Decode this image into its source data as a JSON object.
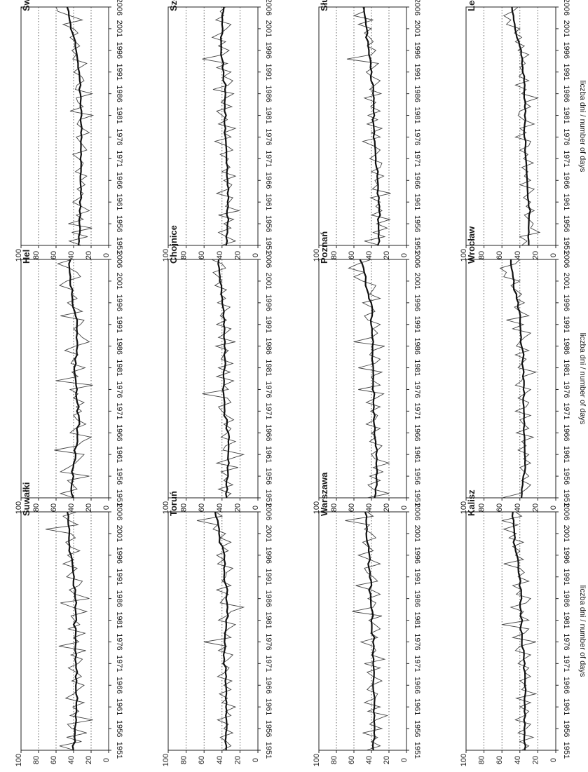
{
  "figure": {
    "ylabel": "liczba dni / number of days"
  },
  "chart_data": {
    "type": "line",
    "x_ticks": [
      1951,
      1956,
      1961,
      1966,
      1971,
      1976,
      1981,
      1986,
      1991,
      1996,
      2001,
      2006
    ],
    "y_ticks": [
      0,
      20,
      40,
      60,
      80,
      100
    ],
    "xlim": [
      1951,
      2006
    ],
    "ylim": [
      0,
      100
    ],
    "grid": "dotted lines at 20, 40, 60, 80",
    "series_style": {
      "annual": "#444444",
      "smoothed": "#111111"
    },
    "panels": [
      {
        "station": "Świnoujście",
        "values": [
          31,
          45,
          24,
          42,
          19,
          46,
          29,
          37,
          22,
          31,
          41,
          33,
          29,
          36,
          27,
          32,
          25,
          38,
          31,
          29,
          34,
          41,
          25,
          29,
          33,
          37,
          22,
          30,
          36,
          33,
          18,
          44,
          29,
          35,
          37,
          19,
          38,
          36,
          28,
          31,
          40,
          33,
          25,
          41,
          37,
          42,
          33,
          38,
          44,
          35,
          40,
          52,
          30,
          44,
          58,
          60
        ]
      },
      {
        "station": "Hel",
        "values": [
          40,
          55,
          36,
          41,
          47,
          22,
          55,
          46,
          38,
          33,
          28,
          62,
          36,
          30,
          20,
          44,
          38,
          26,
          36,
          40,
          31,
          37,
          28,
          40,
          35,
          44,
          18,
          60,
          35,
          42,
          27,
          43,
          40,
          35,
          50,
          38,
          22,
          30,
          35,
          40,
          32,
          28,
          55,
          30,
          40,
          47,
          36,
          42,
          41,
          56,
          48,
          32,
          36,
          45,
          58,
          42
        ]
      },
      {
        "station": "Suwałki",
        "values": [
          39,
          56,
          31,
          48,
          25,
          42,
          47,
          18,
          44,
          34,
          41,
          28,
          49,
          40,
          35,
          28,
          42,
          31,
          37,
          46,
          35,
          30,
          43,
          26,
          57,
          34,
          40,
          27,
          46,
          33,
          39,
          43,
          25,
          41,
          55,
          22,
          38,
          45,
          34,
          30,
          48,
          42,
          36,
          52,
          40,
          47,
          33,
          44,
          49,
          38,
          43,
          72,
          35,
          45,
          52,
          36
        ]
      },
      {
        "station": "Szczecin",
        "values": [
          41,
          25,
          35,
          44,
          30,
          38,
          27,
          44,
          21,
          36,
          32,
          28,
          46,
          33,
          29,
          38,
          25,
          40,
          31,
          36,
          33,
          42,
          28,
          35,
          48,
          30,
          38,
          25,
          44,
          34,
          40,
          46,
          29,
          41,
          36,
          27,
          50,
          33,
          28,
          38,
          30,
          46,
          34,
          62,
          39,
          32,
          44,
          36,
          51,
          41,
          35,
          30,
          47,
          38,
          42,
          36
        ]
      },
      {
        "station": "Chojnice",
        "values": [
          36,
          30,
          44,
          28,
          38,
          33,
          41,
          22,
          46,
          31,
          16,
          39,
          36,
          25,
          41,
          34,
          30,
          38,
          27,
          35,
          40,
          44,
          30,
          34,
          62,
          33,
          38,
          27,
          46,
          31,
          44,
          28,
          41,
          38,
          33,
          47,
          25,
          44,
          36,
          30,
          46,
          35,
          42,
          38,
          31,
          45,
          36,
          42,
          35,
          48,
          40,
          44,
          50,
          36,
          40,
          52
        ]
      },
      {
        "station": "Toruń",
        "values": [
          40,
          30,
          35,
          42,
          28,
          38,
          33,
          45,
          30,
          36,
          25,
          40,
          34,
          43,
          30,
          38,
          29,
          45,
          36,
          32,
          40,
          33,
          28,
          44,
          35,
          60,
          30,
          38,
          33,
          25,
          44,
          35,
          30,
          16,
          42,
          38,
          33,
          46,
          30,
          40,
          36,
          35,
          28,
          45,
          38,
          46,
          33,
          40,
          30,
          42,
          36,
          50,
          45,
          68,
          40,
          47
        ]
      },
      {
        "station": "Słubice",
        "values": [
          30,
          48,
          25,
          38,
          22,
          34,
          19,
          40,
          28,
          35,
          30,
          41,
          18,
          39,
          33,
          36,
          26,
          40,
          30,
          28,
          42,
          35,
          30,
          38,
          50,
          30,
          40,
          28,
          45,
          33,
          44,
          30,
          41,
          35,
          48,
          29,
          42,
          36,
          30,
          40,
          46,
          38,
          32,
          68,
          40,
          35,
          45,
          38,
          42,
          48,
          40,
          55,
          38,
          60,
          48,
          50
        ]
      },
      {
        "station": "Poznań",
        "values": [
          45,
          20,
          38,
          44,
          30,
          42,
          27,
          38,
          20,
          36,
          40,
          33,
          28,
          42,
          35,
          40,
          30,
          46,
          36,
          33,
          41,
          30,
          46,
          35,
          26,
          55,
          30,
          38,
          40,
          28,
          55,
          36,
          30,
          42,
          38,
          25,
          60,
          40,
          33,
          38,
          30,
          44,
          48,
          36,
          40,
          50,
          30,
          42,
          38,
          35,
          50,
          60,
          48,
          66,
          55,
          40
        ]
      },
      {
        "station": "Warszawa",
        "values": [
          46,
          30,
          40,
          33,
          50,
          28,
          42,
          35,
          22,
          44,
          30,
          48,
          36,
          33,
          45,
          40,
          28,
          38,
          45,
          30,
          48,
          25,
          40,
          35,
          38,
          52,
          33,
          41,
          30,
          36,
          43,
          28,
          62,
          38,
          35,
          44,
          30,
          40,
          58,
          33,
          38,
          45,
          48,
          30,
          42,
          55,
          38,
          44,
          50,
          35,
          40,
          48,
          42,
          70,
          38,
          45
        ]
      },
      {
        "station": "Legnica",
        "values": [
          38,
          32,
          40,
          18,
          28,
          25,
          30,
          35,
          24,
          33,
          28,
          36,
          30,
          24,
          40,
          28,
          35,
          31,
          38,
          25,
          36,
          31,
          40,
          30,
          28,
          45,
          33,
          40,
          24,
          36,
          42,
          40,
          28,
          35,
          20,
          38,
          33,
          45,
          30,
          41,
          36,
          40,
          34,
          38,
          30,
          42,
          35,
          45,
          38,
          46,
          40,
          55,
          50,
          58,
          48,
          42
        ]
      },
      {
        "station": "Wrocław",
        "values": [
          60,
          40,
          33,
          28,
          38,
          30,
          35,
          40,
          28,
          36,
          30,
          42,
          33,
          38,
          25,
          44,
          30,
          36,
          40,
          28,
          45,
          33,
          30,
          42,
          35,
          28,
          45,
          38,
          36,
          22,
          42,
          38,
          33,
          45,
          30,
          44,
          40,
          35,
          28,
          48,
          36,
          55,
          30,
          40,
          46,
          35,
          44,
          38,
          45,
          50,
          40,
          58,
          55,
          62,
          45,
          40
        ]
      },
      {
        "station": "Kalisz",
        "values": [
          38,
          30,
          40,
          25,
          42,
          33,
          28,
          45,
          35,
          30,
          40,
          28,
          44,
          22,
          38,
          33,
          40,
          28,
          35,
          30,
          42,
          36,
          28,
          45,
          40,
          22,
          48,
          35,
          30,
          60,
          30,
          40,
          36,
          50,
          33,
          28,
          44,
          38,
          48,
          30,
          42,
          35,
          40,
          58,
          36,
          45,
          40,
          48,
          36,
          52,
          44,
          58,
          42,
          60,
          38,
          45
        ]
      }
    ]
  }
}
